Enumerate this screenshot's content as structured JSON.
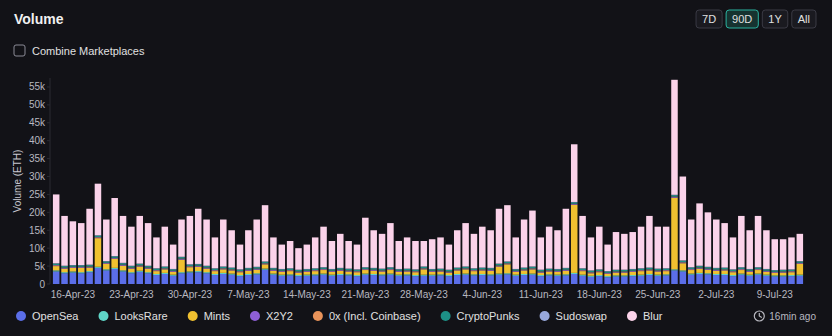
{
  "chart_data": {
    "type": "bar",
    "title": "Volume",
    "y_label": "Volume (ETH)",
    "stacked": true,
    "grid": false,
    "legend": "bottom",
    "categories": [
      null,
      null,
      "16-Apr-23",
      null,
      null,
      null,
      null,
      null,
      null,
      "23-Apr-23",
      null,
      null,
      null,
      null,
      null,
      null,
      "30-Apr-23",
      null,
      null,
      null,
      null,
      null,
      null,
      "7-May-23",
      null,
      null,
      null,
      null,
      null,
      null,
      "14-May-23",
      null,
      null,
      null,
      null,
      null,
      null,
      "21-May-23",
      null,
      null,
      null,
      null,
      null,
      null,
      "28-May-23",
      null,
      null,
      null,
      null,
      null,
      null,
      "4-Jun-23",
      null,
      null,
      null,
      null,
      null,
      null,
      "11-Jun-23",
      null,
      null,
      null,
      null,
      null,
      null,
      "18-Jun-23",
      null,
      null,
      null,
      null,
      null,
      null,
      "25-Jun-23",
      null,
      null,
      null,
      null,
      null,
      null,
      "2-Jul-23",
      null,
      null,
      null,
      null,
      null,
      null,
      "9-Jul-23",
      null,
      null,
      null
    ],
    "ylim": [
      0,
      57500
    ],
    "yticks": [
      0,
      {
        "value": 5000,
        "label": "5k"
      },
      {
        "value": 10000,
        "label": "10k"
      },
      {
        "value": 15000,
        "label": "15k"
      },
      {
        "value": 20000,
        "label": "20k"
      },
      {
        "value": 25000,
        "label": "25k"
      },
      {
        "value": 30000,
        "label": "30k"
      },
      {
        "value": 35000,
        "label": "35k"
      },
      {
        "value": 40000,
        "label": "40k"
      },
      {
        "value": 45000,
        "label": "45k"
      },
      {
        "value": 50000,
        "label": "50k"
      },
      {
        "value": 55000,
        "label": "55k"
      }
    ],
    "series": [
      {
        "name": "OpenSea",
        "color": "#5b6ee8",
        "values": [
          3500,
          3000,
          3200,
          3000,
          3300,
          4500,
          3800,
          4200,
          3500,
          3000,
          3400,
          3000,
          2500,
          2800,
          2300,
          3000,
          3200,
          3300,
          3000,
          2500,
          2800,
          2600,
          2200,
          2500,
          2700,
          4000,
          2600,
          2300,
          2400,
          2200,
          2300,
          2400,
          2600,
          2300,
          2500,
          2400,
          2200,
          2600,
          2500,
          2400,
          2600,
          2300,
          2400,
          2200,
          2300,
          2300,
          2400,
          2200,
          2500,
          2600,
          2400,
          2500,
          2400,
          2600,
          2700,
          2300,
          2500,
          2600,
          2200,
          2400,
          2300,
          2400,
          2800,
          2300,
          2000,
          2200,
          1900,
          2100,
          2100,
          2200,
          2300,
          2500,
          2300,
          2400,
          3800,
          3500,
          2600,
          2800,
          2700,
          2500,
          2500,
          2200,
          2600,
          2300,
          2600,
          2300,
          2100,
          2100,
          2200,
          2300
        ]
      },
      {
        "name": "LooksRare",
        "color": "#5fd6c8",
        "values": [
          300,
          300,
          300,
          300,
          300,
          300,
          300,
          300,
          300,
          300,
          300,
          300,
          300,
          300,
          300,
          300,
          300,
          300,
          300,
          300,
          300,
          300,
          300,
          300,
          300,
          300,
          300,
          300,
          300,
          300,
          300,
          300,
          300,
          300,
          300,
          300,
          300,
          300,
          300,
          300,
          300,
          300,
          300,
          300,
          300,
          300,
          300,
          300,
          300,
          300,
          300,
          300,
          300,
          300,
          300,
          300,
          300,
          300,
          300,
          300,
          300,
          300,
          300,
          300,
          300,
          300,
          300,
          300,
          300,
          300,
          300,
          300,
          300,
          300,
          300,
          300,
          300,
          300,
          300,
          300,
          300,
          300,
          300,
          300,
          300,
          300,
          300,
          300,
          300,
          300
        ]
      },
      {
        "name": "Mints",
        "color": "#f0c030",
        "values": [
          1200,
          1000,
          1000,
          1200,
          1000,
          8000,
          1500,
          2500,
          1300,
          1000,
          1200,
          1000,
          800,
          1000,
          800,
          3500,
          1200,
          1200,
          1000,
          800,
          1000,
          900,
          800,
          900,
          1000,
          1200,
          800,
          800,
          900,
          700,
          800,
          900,
          1000,
          800,
          900,
          800,
          800,
          1000,
          900,
          800,
          1000,
          800,
          800,
          800,
          1500,
          800,
          800,
          700,
          1000,
          1200,
          900,
          1000,
          1000,
          2000,
          2500,
          800,
          1000,
          1200,
          700,
          800,
          800,
          1000,
          19000,
          1000,
          700,
          800,
          600,
          800,
          800,
          900,
          1000,
          1000,
          900,
          900,
          20000,
          2000,
          1000,
          1200,
          1000,
          900,
          1000,
          800,
          1000,
          800,
          1000,
          800,
          700,
          800,
          800,
          3000
        ]
      },
      {
        "name": "X2Y2",
        "color": "#8e5fd6",
        "values": [
          200,
          200,
          200,
          200,
          200,
          200,
          200,
          200,
          200,
          200,
          200,
          200,
          200,
          200,
          200,
          200,
          200,
          200,
          200,
          200,
          200,
          200,
          200,
          200,
          200,
          200,
          200,
          200,
          200,
          200,
          200,
          200,
          200,
          200,
          200,
          200,
          200,
          200,
          200,
          200,
          200,
          200,
          200,
          200,
          200,
          200,
          200,
          200,
          200,
          200,
          200,
          200,
          200,
          200,
          200,
          200,
          200,
          200,
          200,
          200,
          200,
          200,
          200,
          200,
          200,
          200,
          200,
          200,
          200,
          200,
          200,
          200,
          200,
          200,
          200,
          200,
          200,
          200,
          200,
          200,
          200,
          200,
          200,
          200,
          200,
          200,
          200,
          200,
          200,
          200
        ]
      },
      {
        "name": "0x (Incl. Coinbase)",
        "color": "#e8935a",
        "values": [
          100,
          100,
          100,
          100,
          100,
          100,
          100,
          100,
          100,
          100,
          100,
          100,
          100,
          100,
          100,
          100,
          100,
          100,
          100,
          100,
          100,
          100,
          100,
          100,
          100,
          100,
          100,
          100,
          100,
          100,
          100,
          100,
          100,
          100,
          100,
          100,
          100,
          100,
          100,
          100,
          100,
          100,
          100,
          100,
          100,
          100,
          100,
          100,
          100,
          100,
          100,
          100,
          100,
          100,
          100,
          100,
          100,
          100,
          100,
          100,
          100,
          100,
          100,
          100,
          100,
          100,
          100,
          100,
          100,
          100,
          100,
          100,
          100,
          100,
          100,
          100,
          100,
          100,
          100,
          100,
          100,
          100,
          100,
          100,
          100,
          100,
          100,
          100,
          100,
          100
        ]
      },
      {
        "name": "CryptoPunks",
        "color": "#1d8f86",
        "values": [
          400,
          400,
          400,
          400,
          400,
          400,
          400,
          400,
          400,
          400,
          400,
          400,
          400,
          400,
          400,
          400,
          400,
          400,
          400,
          400,
          400,
          400,
          400,
          400,
          400,
          400,
          400,
          400,
          400,
          400,
          400,
          400,
          400,
          400,
          400,
          400,
          400,
          400,
          400,
          400,
          400,
          400,
          400,
          400,
          400,
          400,
          400,
          400,
          400,
          400,
          400,
          400,
          400,
          400,
          400,
          400,
          400,
          400,
          400,
          400,
          400,
          400,
          400,
          400,
          400,
          400,
          400,
          400,
          400,
          400,
          400,
          400,
          400,
          400,
          400,
          400,
          400,
          400,
          400,
          400,
          400,
          400,
          400,
          400,
          400,
          400,
          400,
          400,
          400,
          400
        ]
      },
      {
        "name": "Sudoswap",
        "color": "#98a8dc",
        "values": [
          100,
          100,
          100,
          100,
          100,
          100,
          100,
          100,
          100,
          100,
          100,
          100,
          100,
          100,
          100,
          100,
          100,
          100,
          100,
          100,
          100,
          100,
          100,
          100,
          100,
          100,
          100,
          100,
          100,
          100,
          100,
          100,
          100,
          100,
          100,
          100,
          100,
          100,
          100,
          100,
          100,
          100,
          100,
          100,
          100,
          100,
          100,
          100,
          100,
          100,
          100,
          100,
          100,
          100,
          100,
          100,
          100,
          100,
          100,
          100,
          100,
          100,
          100,
          100,
          100,
          100,
          100,
          100,
          100,
          100,
          100,
          100,
          100,
          100,
          100,
          100,
          100,
          100,
          100,
          100,
          100,
          100,
          100,
          100,
          100,
          100,
          100,
          100,
          100,
          100
        ]
      },
      {
        "name": "Blur",
        "color": "#fbd3ea",
        "values": [
          19200,
          13900,
          12200,
          11700,
          15600,
          14400,
          11600,
          16200,
          13100,
          10900,
          13300,
          11900,
          8600,
          11100,
          6800,
          10400,
          13500,
          15400,
          12900,
          8600,
          13100,
          10400,
          6900,
          10500,
          13200,
          15700,
          8500,
          6800,
          7600,
          6000,
          6800,
          8600,
          11300,
          7800,
          9500,
          7700,
          6900,
          13800,
          10500,
          9700,
          12300,
          7800,
          8700,
          7900,
          7100,
          8300,
          8700,
          7000,
          10400,
          12100,
          9600,
          11400,
          10500,
          15300,
          15700,
          8800,
          13400,
          15600,
          9000,
          11700,
          10800,
          16500,
          16100,
          14600,
          9200,
          11900,
          7400,
          10500,
          10000,
          10300,
          11600,
          14400,
          11700,
          11600,
          32100,
          23400,
          13300,
          17400,
          15200,
          13500,
          12400,
          8900,
          14300,
          10800,
          14300,
          10800,
          8600,
          8500,
          8900,
          7600
        ]
      }
    ]
  },
  "page": {
    "range_buttons": [
      "7D",
      "90D",
      "1Y",
      "All"
    ],
    "selected_range": "90D",
    "checkbox_label": "Combine Marketplaces",
    "updated": "16min ago"
  }
}
